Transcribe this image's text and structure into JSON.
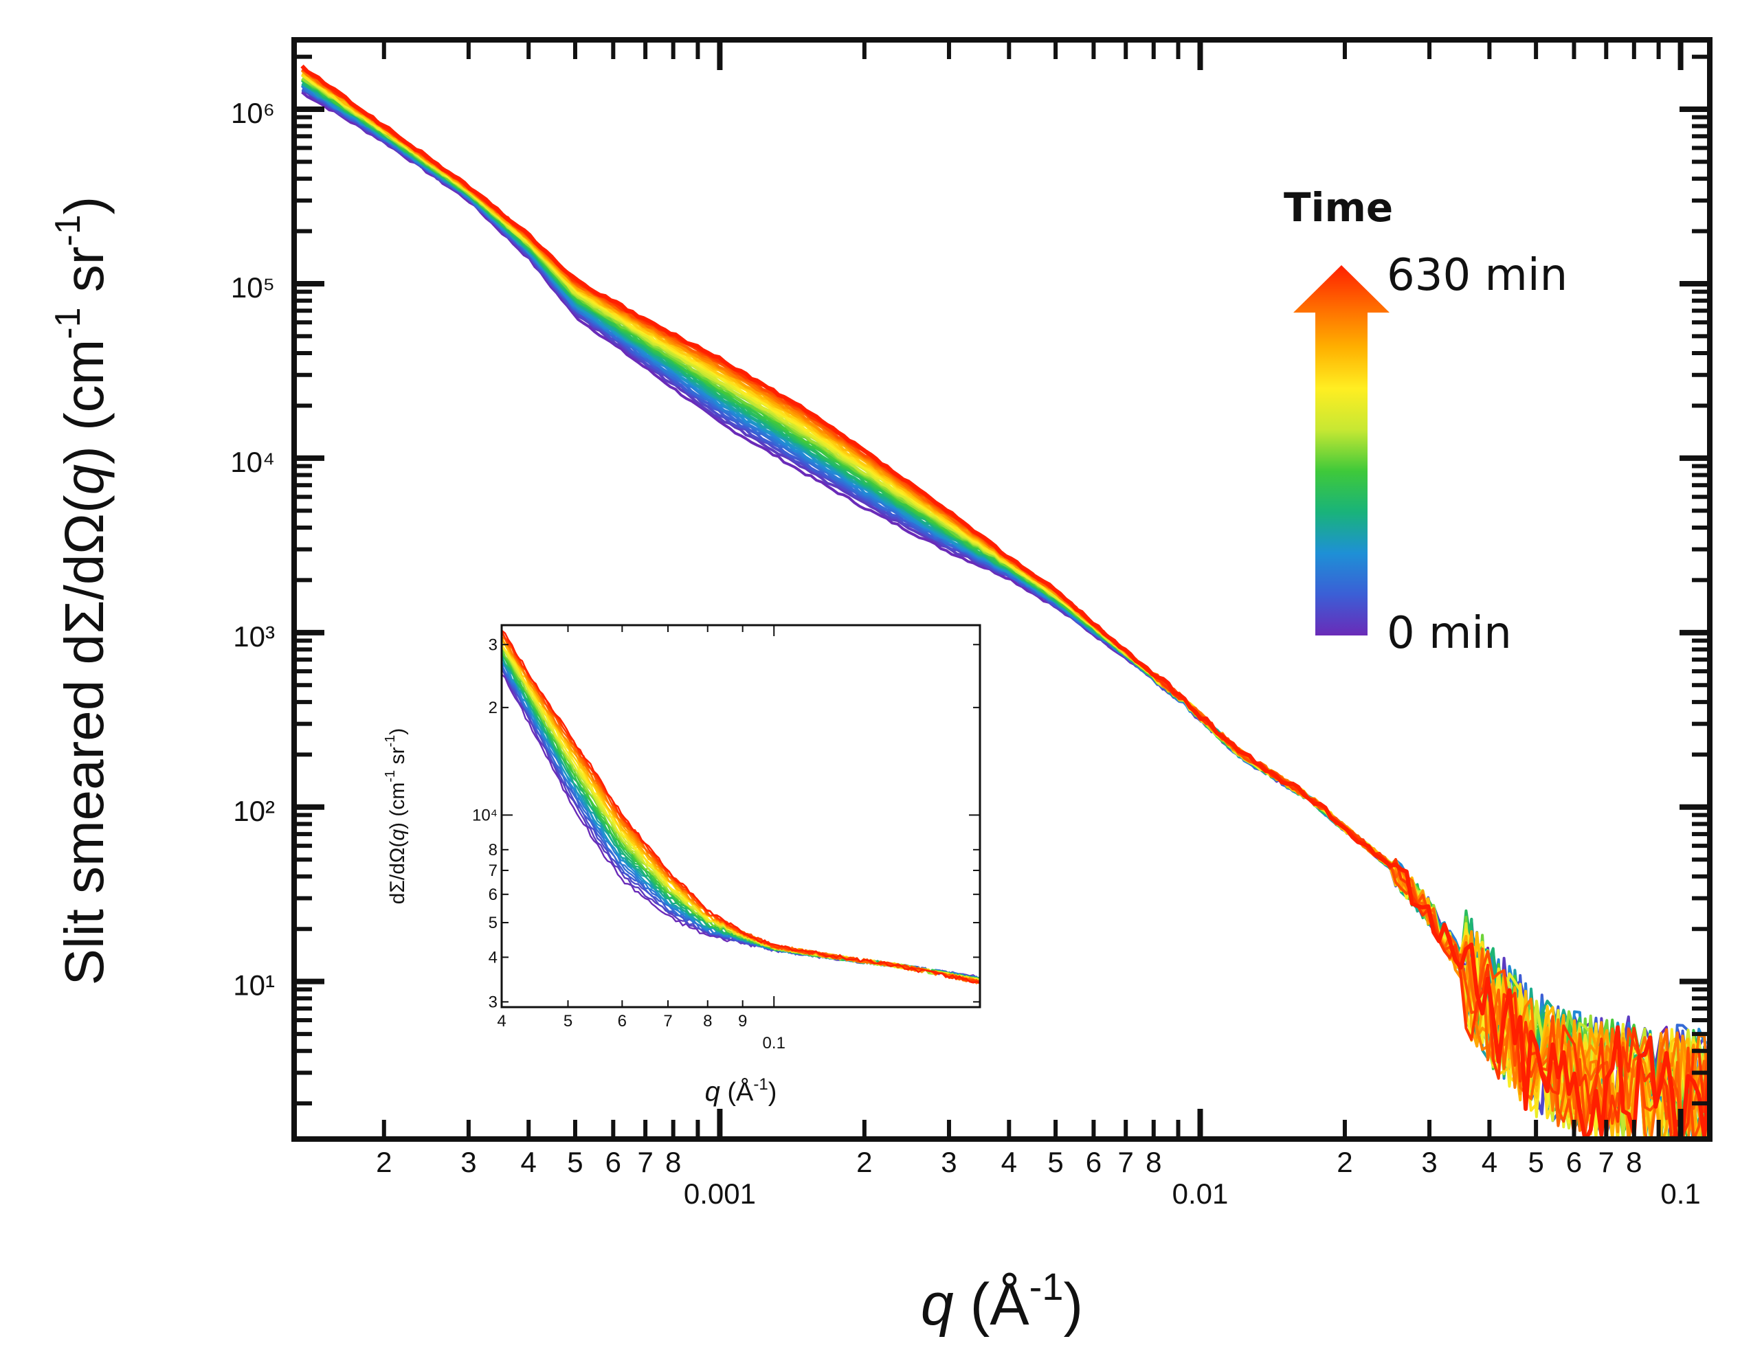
{
  "chart_data": {
    "type": "line",
    "scale": "log-log",
    "xlabel": "q (Å⁻¹)",
    "ylabel": "Slit smeared dΣ/dΩ(q) (cm⁻¹ sr⁻¹)",
    "xlim": [
      0.00013,
      0.115
    ],
    "ylim": [
      1.25,
      2500000
    ],
    "x_tick_labels": [
      "2",
      "3",
      "4",
      "5",
      "6",
      "7",
      "8",
      "0.001",
      "2",
      "3",
      "4",
      "5",
      "6",
      "7",
      "8",
      "0.01",
      "2",
      "3",
      "4",
      "5",
      "6",
      "7",
      "8",
      "0.1"
    ],
    "y_tick_labels": [
      "10¹",
      "10²",
      "10³",
      "10⁴",
      "10⁵",
      "10⁶"
    ],
    "legend": {
      "title": "Time",
      "top_label": "630 min",
      "bottom_label": "0 min",
      "start_minutes": 0,
      "end_minutes": 630,
      "colormap": [
        "#6a2bb8",
        "#3b5fd6",
        "#1e90d6",
        "#19b37a",
        "#3fc93a",
        "#c7e833",
        "#ffee22",
        "#ffb000",
        "#ff6a00",
        "#ff1f00"
      ]
    },
    "series_summary": {
      "count": 30,
      "x": [
        0.000135,
        0.0002,
        0.0003,
        0.0004,
        0.0005,
        0.0007,
        0.001,
        0.0015,
        0.002,
        0.003,
        0.004,
        0.005,
        0.007,
        0.009,
        0.012,
        0.017,
        0.02,
        0.025,
        0.03,
        0.035,
        0.04,
        0.05,
        0.06,
        0.08,
        0.1,
        0.115
      ],
      "y_at_0_min": [
        1250000,
        650000,
        300000,
        140000,
        65000,
        33000,
        16000,
        8200,
        5200,
        2900,
        2050,
        1400,
        720,
        420,
        200,
        110,
        75,
        45,
        25,
        13,
        8,
        4,
        3.2,
        2.8,
        2.6,
        2.4
      ],
      "y_at_630_min": [
        1750000,
        800000,
        360000,
        190000,
        105000,
        62000,
        37000,
        19000,
        11000,
        4900,
        2700,
        1750,
        780,
        440,
        210,
        112,
        76,
        46,
        25,
        12,
        7,
        3.5,
        2.8,
        2.5,
        2.3,
        2.2
      ]
    },
    "inset": {
      "xlabel": "q (Å⁻¹)",
      "ylabel": "dΣ/dΩ(q) (cm⁻¹ sr⁻¹)",
      "xlim": [
        0.04,
        0.2
      ],
      "ylim": [
        2900,
        34000
      ],
      "x_tick_labels": [
        "4",
        "5",
        "6",
        "7",
        "8",
        "9",
        "0.1"
      ],
      "y_tick_labels": [
        "3",
        "4",
        "5",
        "6",
        "7",
        "8",
        "10⁴",
        "2",
        "3"
      ],
      "x": [
        0.04,
        0.045,
        0.05,
        0.055,
        0.06,
        0.07,
        0.08,
        0.09,
        0.1,
        0.12,
        0.15,
        0.2
      ],
      "y_at_0_min": [
        25000,
        16500,
        11200,
        8300,
        6600,
        5200,
        4600,
        4400,
        4200,
        4000,
        3800,
        3500
      ],
      "y_at_630_min": [
        33000,
        23000,
        17000,
        13000,
        10000,
        7000,
        5400,
        4700,
        4300,
        4050,
        3800,
        3400
      ]
    }
  }
}
